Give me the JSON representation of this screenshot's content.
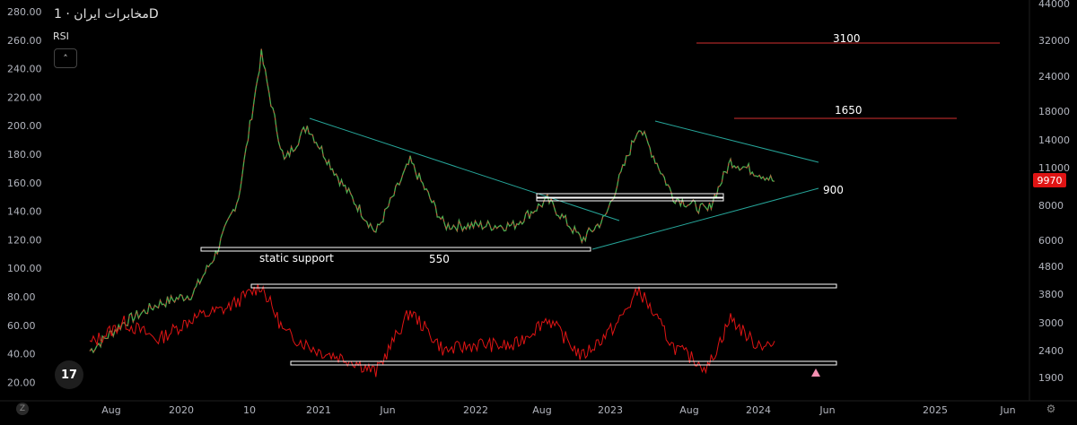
{
  "header": {
    "title": "مخابرات ایران",
    "interval": "· 1D",
    "rsi_label": "RSI",
    "collapse_icon": "chevron-up-icon"
  },
  "current_price": "9970",
  "z_button": "Z",
  "chart_data": {
    "type": "line",
    "left_axis_ticks": [
      "280.00",
      "260.00",
      "240.00",
      "220.00",
      "200.00",
      "180.00",
      "160.00",
      "140.00",
      "120.00",
      "100.00",
      "80.00",
      "60.00",
      "40.00",
      "20.00"
    ],
    "right_axis_ticks": [
      "44000",
      "32000",
      "24000",
      "18000",
      "14000",
      "11000",
      "8000",
      "6000",
      "4800",
      "3800",
      "3000",
      "2400",
      "1900"
    ],
    "x_ticks": [
      "Aug",
      "2020",
      "10",
      "2021",
      "Jun",
      "2022",
      "Aug",
      "2023",
      "Aug",
      "2024",
      "Jun",
      "2025",
      "Jun"
    ],
    "annotations": {
      "label_3100": "3100",
      "label_1650": "1650",
      "label_900": "900",
      "label_550": "550",
      "label_static_support": "static support"
    },
    "price_series_approx": [
      {
        "x": "2019-05",
        "y": 42
      },
      {
        "x": "2019-08",
        "y": 62
      },
      {
        "x": "2019-11",
        "y": 75
      },
      {
        "x": "2020-02",
        "y": 82
      },
      {
        "x": "2020-04",
        "y": 110
      },
      {
        "x": "2020-06",
        "y": 150
      },
      {
        "x": "2020-07",
        "y": 200
      },
      {
        "x": "2020-08",
        "y": 250
      },
      {
        "x": "2020-09",
        "y": 210
      },
      {
        "x": "2020-10",
        "y": 175
      },
      {
        "x": "2020-12",
        "y": 200
      },
      {
        "x": "2021-03",
        "y": 160
      },
      {
        "x": "2021-06",
        "y": 125
      },
      {
        "x": "2021-09",
        "y": 175
      },
      {
        "x": "2021-12",
        "y": 130
      },
      {
        "x": "2022-06",
        "y": 130
      },
      {
        "x": "2022-09",
        "y": 148
      },
      {
        "x": "2022-12",
        "y": 120
      },
      {
        "x": "2023-02",
        "y": 135
      },
      {
        "x": "2023-05",
        "y": 200
      },
      {
        "x": "2023-08",
        "y": 150
      },
      {
        "x": "2023-11",
        "y": 140
      },
      {
        "x": "2024-01",
        "y": 175
      },
      {
        "x": "2024-04",
        "y": 165
      },
      {
        "x": "2024-05",
        "y": 160
      }
    ],
    "rsi_series_approx": [
      {
        "x": "2019-05",
        "y": 47
      },
      {
        "x": "2019-08",
        "y": 62
      },
      {
        "x": "2019-11",
        "y": 50
      },
      {
        "x": "2020-02",
        "y": 65
      },
      {
        "x": "2020-05",
        "y": 72
      },
      {
        "x": "2020-08",
        "y": 88
      },
      {
        "x": "2020-10",
        "y": 55
      },
      {
        "x": "2021-01",
        "y": 42
      },
      {
        "x": "2021-04",
        "y": 35
      },
      {
        "x": "2021-06",
        "y": 27
      },
      {
        "x": "2021-09",
        "y": 70
      },
      {
        "x": "2021-12",
        "y": 42
      },
      {
        "x": "2022-03",
        "y": 47
      },
      {
        "x": "2022-06",
        "y": 45
      },
      {
        "x": "2022-09",
        "y": 65
      },
      {
        "x": "2022-12",
        "y": 38
      },
      {
        "x": "2023-03",
        "y": 60
      },
      {
        "x": "2023-05",
        "y": 85
      },
      {
        "x": "2023-08",
        "y": 45
      },
      {
        "x": "2023-11",
        "y": 30
      },
      {
        "x": "2024-01",
        "y": 65
      },
      {
        "x": "2024-03",
        "y": 48
      },
      {
        "x": "2024-05",
        "y": 45
      }
    ]
  }
}
